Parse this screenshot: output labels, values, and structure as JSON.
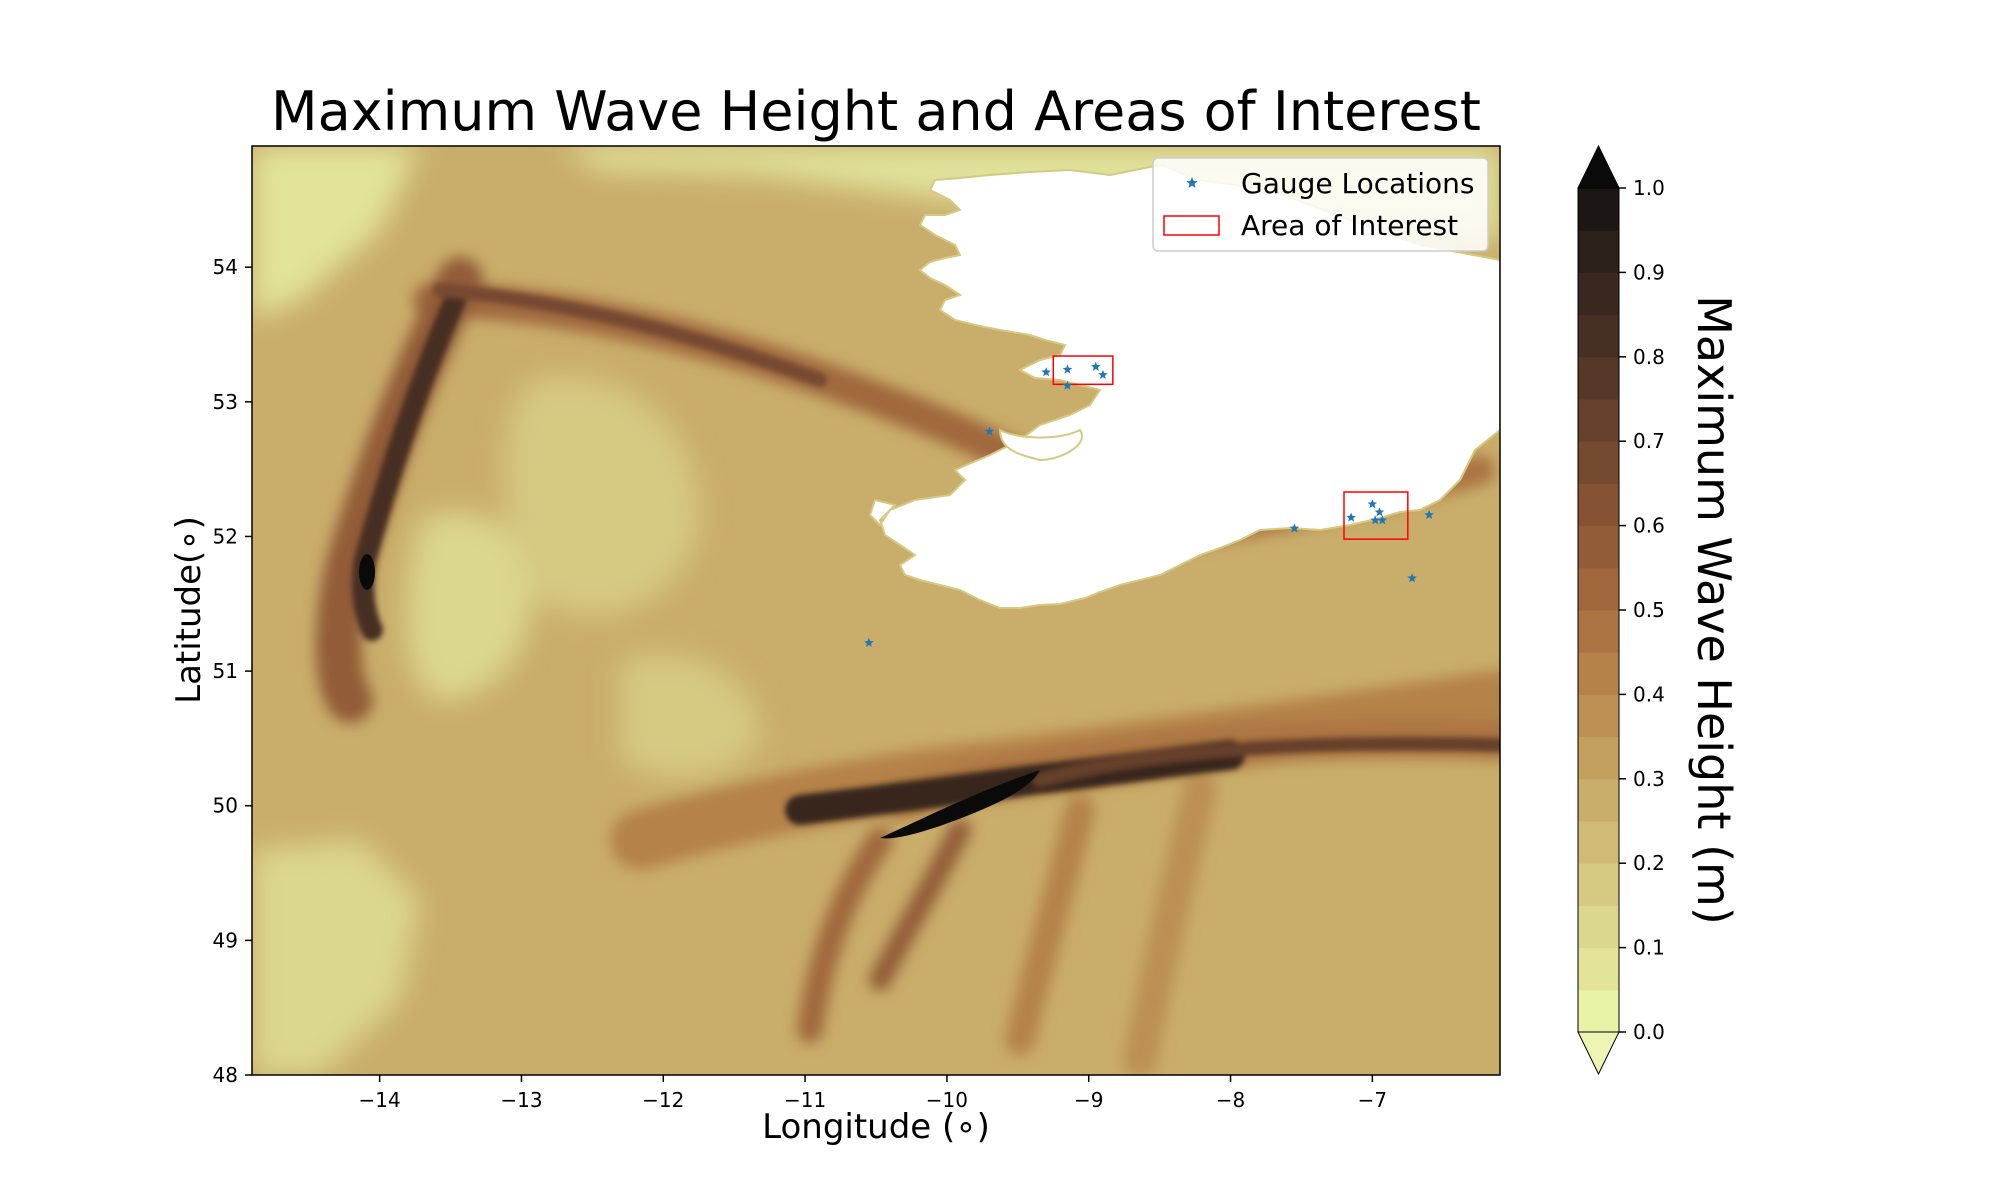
{
  "chart_data": {
    "type": "heatmap",
    "title": "Maximum Wave Height and Areas of Interest",
    "xlabel": "Longitude (∘)",
    "ylabel": "Latitude(∘)",
    "xlim": [
      -14.9,
      -6.1
    ],
    "ylim": [
      48,
      54.9
    ],
    "x_ticks": [
      -14,
      -13,
      -12,
      -11,
      -10,
      -9,
      -8,
      -7
    ],
    "x_tick_labels": [
      "−14",
      "−13",
      "−12",
      "−11",
      "−10",
      "−9",
      "−8",
      "−7"
    ],
    "y_ticks": [
      48,
      49,
      50,
      51,
      52,
      53,
      54
    ],
    "y_tick_labels": [
      "48",
      "49",
      "50",
      "51",
      "52",
      "53",
      "54"
    ],
    "colorbar": {
      "label": "Maximum Wave Height (m)",
      "min": 0.0,
      "max": 1.0,
      "levels": 20,
      "extend": "both",
      "ticks": [
        0.0,
        0.1,
        0.2,
        0.3,
        0.4,
        0.5,
        0.6,
        0.7,
        0.8,
        0.9,
        1.0
      ],
      "tick_labels": [
        "0.0",
        "0.1",
        "0.2",
        "0.3",
        "0.4",
        "0.5",
        "0.6",
        "0.7",
        "0.8",
        "0.9",
        "1.0"
      ],
      "colors": [
        "#e8f2a6",
        "#e2e49a",
        "#dcd78e",
        "#d6c982",
        "#d0bb76",
        "#c9ad6a",
        "#c49f5e",
        "#bc9053",
        "#b5824a",
        "#ac7443",
        "#a0673d",
        "#935c38",
        "#855234",
        "#764a30",
        "#66412c",
        "#563828",
        "#472f24",
        "#39281f",
        "#2b201a",
        "#1c1714"
      ],
      "over_color": "#0a0a0a",
      "under_color": "#eef5b4"
    },
    "legend": {
      "position": "top-right",
      "entries": [
        {
          "label": "Gauge Locations",
          "marker": "star",
          "color": "#1f77b4"
        },
        {
          "label": "Area of Interest",
          "marker": "rectangle",
          "color": "#ff0000"
        }
      ]
    },
    "land_color": "#ffffff",
    "gauges": [
      {
        "lon": -9.3,
        "lat": 53.22
      },
      {
        "lon": -9.15,
        "lat": 53.24
      },
      {
        "lon": -9.15,
        "lat": 53.12
      },
      {
        "lon": -8.95,
        "lat": 53.26
      },
      {
        "lon": -8.9,
        "lat": 53.2
      },
      {
        "lon": -9.7,
        "lat": 52.78
      },
      {
        "lon": -7.55,
        "lat": 52.06
      },
      {
        "lon": -7.15,
        "lat": 52.14
      },
      {
        "lon": -7.0,
        "lat": 52.24
      },
      {
        "lon": -6.95,
        "lat": 52.18
      },
      {
        "lon": -6.98,
        "lat": 52.12
      },
      {
        "lon": -6.93,
        "lat": 52.12
      },
      {
        "lon": -6.6,
        "lat": 52.16
      },
      {
        "lon": -6.72,
        "lat": 51.69
      },
      {
        "lon": -10.55,
        "lat": 51.21
      }
    ],
    "areas_of_interest": [
      {
        "lon_min": -9.25,
        "lon_max": -8.83,
        "lat_min": 53.13,
        "lat_max": 53.34
      },
      {
        "lon_min": -7.2,
        "lon_max": -6.75,
        "lat_min": 51.98,
        "lat_max": 52.33
      }
    ]
  }
}
